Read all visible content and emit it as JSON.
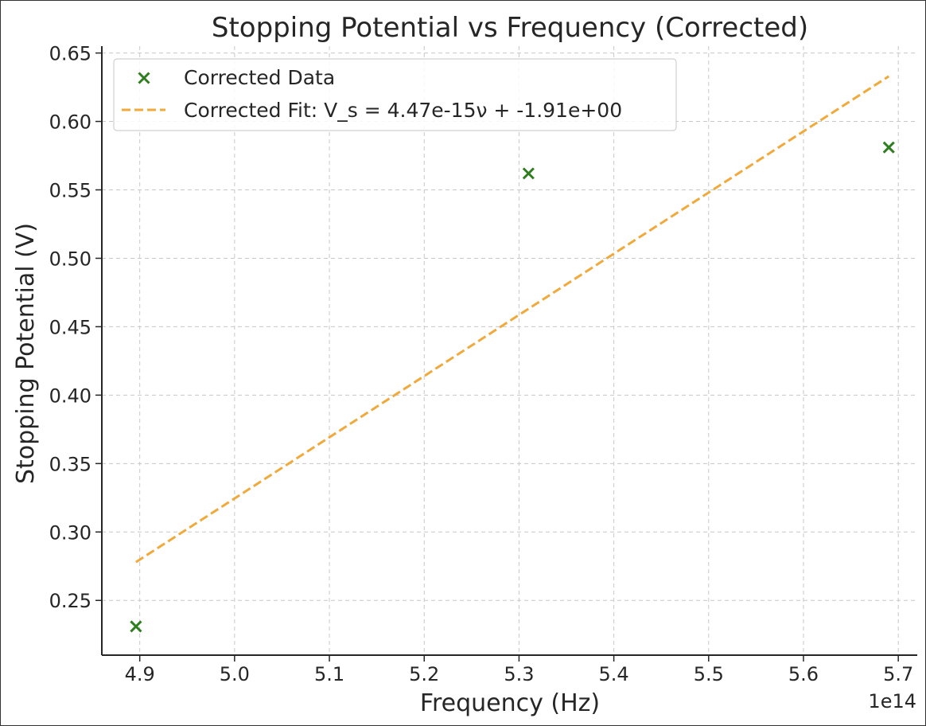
{
  "chart_data": {
    "type": "scatter",
    "title": "Stopping Potential vs Frequency (Corrected)",
    "xlabel": "Frequency (Hz)",
    "ylabel": "Stopping Potential (V)",
    "x_offset_label": "1e14",
    "xlim": [
      4.86,
      5.72
    ],
    "ylim": [
      0.21,
      0.655
    ],
    "x_ticks": [
      4.9,
      5.0,
      5.1,
      5.2,
      5.3,
      5.4,
      5.5,
      5.6,
      5.7
    ],
    "x_tick_labels": [
      "4.9",
      "5.0",
      "5.1",
      "5.2",
      "5.3",
      "5.4",
      "5.5",
      "5.6",
      "5.7"
    ],
    "y_ticks": [
      0.25,
      0.3,
      0.35,
      0.4,
      0.45,
      0.5,
      0.55,
      0.6,
      0.65
    ],
    "y_tick_labels": [
      "0.25",
      "0.30",
      "0.35",
      "0.40",
      "0.45",
      "0.50",
      "0.55",
      "0.60",
      "0.65"
    ],
    "grid": true,
    "legend_position": "top-left",
    "series": [
      {
        "name": "Corrected Data",
        "kind": "scatter",
        "marker": "x",
        "color": "#2e7d1f",
        "x": [
          4.896,
          5.31,
          5.69
        ],
        "y": [
          0.231,
          0.562,
          0.581
        ]
      },
      {
        "name": "Corrected Fit: V_s = 4.47e-15ν + -1.91e+00",
        "kind": "line",
        "style": "dashed",
        "color": "#f0a93b",
        "x": [
          4.896,
          5.69
        ],
        "y": [
          0.278,
          0.633
        ]
      }
    ]
  }
}
